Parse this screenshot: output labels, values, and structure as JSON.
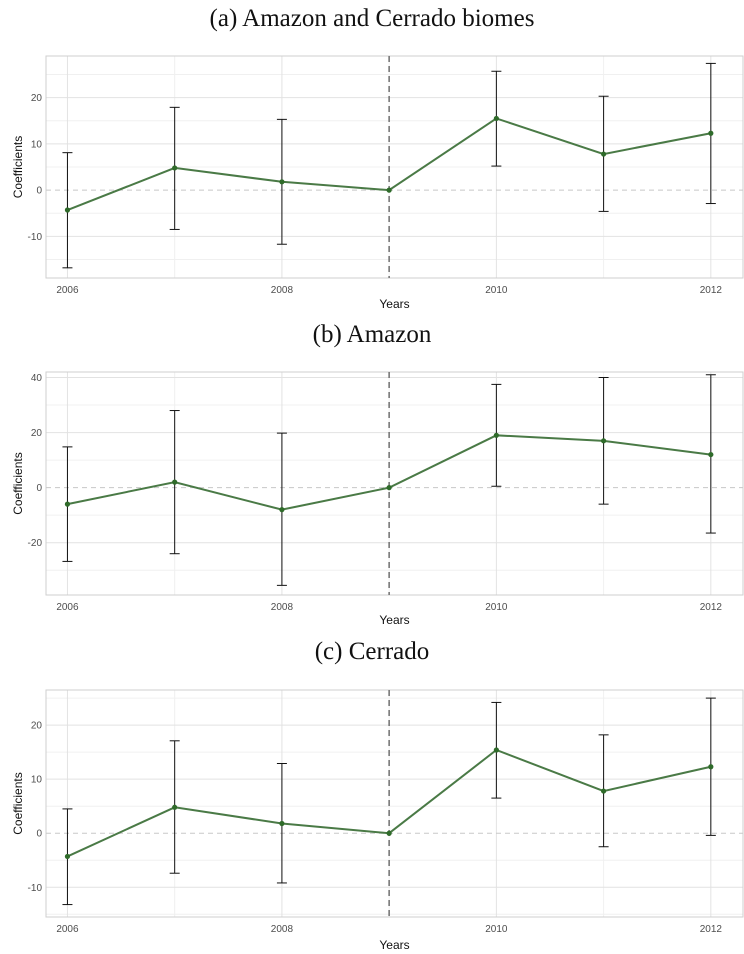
{
  "chart_data": [
    {
      "type": "line",
      "title": "(a) Amazon and Cerrado biomes",
      "xlabel": "Years",
      "ylabel": "Coefficients",
      "x": [
        2006,
        2007,
        2008,
        2009,
        2010,
        2011,
        2012
      ],
      "series": [
        {
          "values": [
            -4.3,
            4.8,
            1.8,
            0.0,
            15.5,
            7.8,
            12.3
          ],
          "ci_low": [
            -16.8,
            -8.5,
            -11.7,
            0.0,
            5.2,
            -4.6,
            -2.9
          ],
          "ci_high": [
            8.1,
            17.9,
            15.3,
            0.0,
            25.7,
            20.3,
            27.4
          ]
        }
      ],
      "xlim": [
        2005.8,
        2012.3
      ],
      "ylim": [
        -19,
        29
      ],
      "xticks": [
        "2006",
        "2008",
        "2010",
        "2012"
      ],
      "yticks": [
        "-10",
        "0",
        "10",
        "20"
      ],
      "reference_vline": 2009,
      "reference_hline": 0,
      "grid": true,
      "line_color": "#4a7a46",
      "point_color": "#2f6b2a",
      "errorbar_color": "#111111"
    },
    {
      "type": "line",
      "title": "(b) Amazon",
      "xlabel": "Years",
      "ylabel": "Coefficients",
      "x": [
        2006,
        2007,
        2008,
        2009,
        2010,
        2011,
        2012
      ],
      "series": [
        {
          "values": [
            -6.0,
            2.0,
            -8.0,
            0.0,
            19.0,
            17.0,
            12.0
          ],
          "ci_low": [
            -26.8,
            -24.0,
            -35.5,
            0.0,
            0.5,
            -6.0,
            -16.5
          ],
          "ci_high": [
            14.8,
            28.0,
            19.8,
            0.0,
            37.5,
            40.0,
            41.0
          ]
        }
      ],
      "xlim": [
        2005.8,
        2012.3
      ],
      "ylim": [
        -39,
        42
      ],
      "xticks": [
        "2006",
        "2008",
        "2010",
        "2012"
      ],
      "yticks": [
        "-20",
        "0",
        "20",
        "40"
      ],
      "reference_vline": 2009,
      "reference_hline": 0,
      "grid": true,
      "line_color": "#4a7a46",
      "point_color": "#2f6b2a",
      "errorbar_color": "#111111"
    },
    {
      "type": "line",
      "title": "(c) Cerrado",
      "xlabel": "Years",
      "ylabel": "Coefficients",
      "x": [
        2006,
        2007,
        2008,
        2009,
        2010,
        2011,
        2012
      ],
      "series": [
        {
          "values": [
            -4.3,
            4.8,
            1.8,
            0.0,
            15.4,
            7.8,
            12.3
          ],
          "ci_low": [
            -13.2,
            -7.4,
            -9.2,
            0.0,
            6.5,
            -2.5,
            -0.4
          ],
          "ci_high": [
            4.5,
            17.1,
            12.9,
            0.0,
            24.2,
            18.2,
            25.0
          ]
        }
      ],
      "xlim": [
        2005.8,
        2012.3
      ],
      "ylim": [
        -15.5,
        26.5
      ],
      "xticks": [
        "2006",
        "2008",
        "2010",
        "2012"
      ],
      "yticks": [
        "-10",
        "0",
        "10",
        "20"
      ],
      "reference_vline": 2009,
      "reference_hline": 0,
      "grid": true,
      "line_color": "#4a7a46",
      "point_color": "#2f6b2a",
      "errorbar_color": "#111111"
    }
  ]
}
